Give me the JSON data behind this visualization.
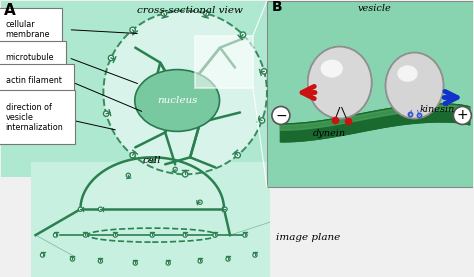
{
  "bg_color": "#f0f0f0",
  "panel_a_bg": "#aee8d0",
  "panel_a_inner_bg": "#c8f0e0",
  "panel_b_bg": "#88d4b0",
  "cell_bottom_bg": "#c8f0e0",
  "nucleus_color": "#78c8a0",
  "nucleus_edge": "#2a7a50",
  "mt_color": "#2a8050",
  "dashed_color": "#2a8050",
  "title_a": "cross-sectional view",
  "label_a": "A",
  "label_b": "B",
  "labels_left": [
    "cellular\nmembrane",
    "microtubule",
    "actin filament",
    "direction of\nvesicle\ninternalization"
  ],
  "label_bottom_cell": "cell",
  "label_image_plane": "image plane",
  "label_vesicle": "vesicle",
  "label_kinesin": "kinesin",
  "label_dynein": "dynein",
  "label_minus": "−",
  "label_plus": "+",
  "arrow_red": "#cc1111",
  "arrow_blue": "#1133cc",
  "green_tube_dark": "#1a6a30",
  "green_tube_mid": "#2a8a40",
  "green_tube_light": "#50aa60",
  "white": "#ffffff",
  "vesicle_color": "#c8c8c8",
  "vesicle_highlight": "#f0f0f0",
  "red_dot": "#cc1111",
  "blue_dot": "#3355cc"
}
